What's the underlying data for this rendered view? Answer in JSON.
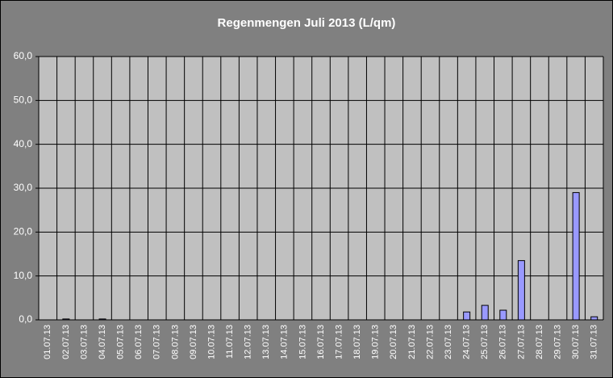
{
  "chart_data": {
    "type": "bar",
    "title": "Regenmengen Juli 2013 (L/qm)",
    "categories": [
      "01.07.13",
      "02.07.13",
      "03.07.13",
      "04.07.13",
      "05.07.13",
      "06.07.13",
      "07.07.13",
      "08.07.13",
      "09.07.13",
      "10.07.13",
      "11.07.13",
      "12.07.13",
      "13.07.13",
      "14.07.13",
      "15.07.13",
      "16.07.13",
      "17.07.13",
      "18.07.13",
      "19.07.13",
      "20.07.13",
      "21.07.13",
      "22.07.13",
      "23.07.13",
      "24.07.13",
      "25.07.13",
      "26.07.13",
      "27.07.13",
      "28.07.13",
      "29.07.13",
      "30.07.13",
      "31.07.13"
    ],
    "values": [
      0,
      0.2,
      0,
      0.2,
      0,
      0,
      0,
      0,
      0,
      0,
      0,
      0,
      0,
      0,
      0,
      0,
      0,
      0,
      0,
      0,
      0,
      0,
      0,
      1.8,
      3.3,
      2.2,
      13.5,
      0,
      0,
      29,
      0.7
    ],
    "color": "#9999ff",
    "ylim": [
      0,
      60
    ],
    "yticks": [
      {
        "value": 0,
        "label": "0,0"
      },
      {
        "value": 10,
        "label": "10,0"
      },
      {
        "value": 20,
        "label": "20,0"
      },
      {
        "value": 30,
        "label": "30,0"
      },
      {
        "value": 40,
        "label": "40,0"
      },
      {
        "value": 50,
        "label": "50,0"
      },
      {
        "value": 60,
        "label": "60,0"
      }
    ],
    "grid": true
  }
}
